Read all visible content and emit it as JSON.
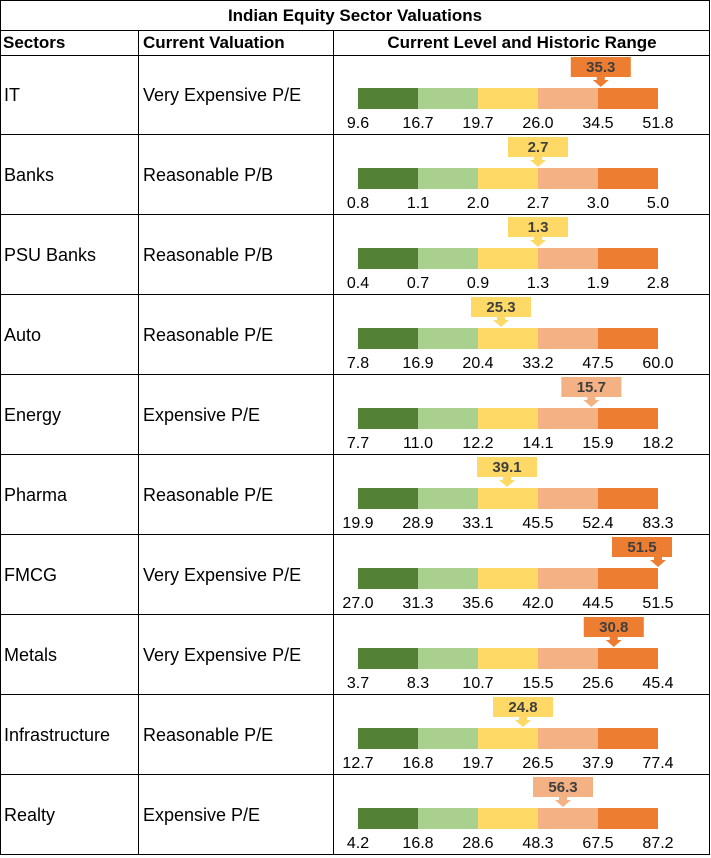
{
  "title": "Indian Equity Sector Valuations",
  "headers": {
    "sector": "Sectors",
    "valuation": "Current Valuation",
    "range": "Current Level and Historic Range"
  },
  "colors": [
    "#538135",
    "#a9d08e",
    "#ffd966",
    "#f4b183",
    "#ed7d31"
  ],
  "chart_data": {
    "type": "table",
    "rows": [
      {
        "sector": "IT",
        "valuation": "Very Expensive P/E",
        "current": "35.3",
        "ticks": [
          "9.6",
          "16.7",
          "19.7",
          "26.0",
          "34.5",
          "51.8"
        ],
        "zone": 4
      },
      {
        "sector": "Banks",
        "valuation": "Reasonable P/B",
        "current": "2.7",
        "ticks": [
          "0.8",
          "1.1",
          "2.0",
          "2.7",
          "3.0",
          "5.0"
        ],
        "zone": 2
      },
      {
        "sector": "PSU Banks",
        "valuation": "Reasonable P/B",
        "current": "1.3",
        "ticks": [
          "0.4",
          "0.7",
          "0.9",
          "1.3",
          "1.9",
          "2.8"
        ],
        "zone": 2
      },
      {
        "sector": "Auto",
        "valuation": "Reasonable P/E",
        "current": "25.3",
        "ticks": [
          "7.8",
          "16.9",
          "20.4",
          "33.2",
          "47.5",
          "60.0"
        ],
        "zone": 2
      },
      {
        "sector": "Energy",
        "valuation": "Expensive P/E",
        "current": "15.7",
        "ticks": [
          "7.7",
          "11.0",
          "12.2",
          "14.1",
          "15.9",
          "18.2"
        ],
        "zone": 3
      },
      {
        "sector": "Pharma",
        "valuation": "Reasonable P/E",
        "current": "39.1",
        "ticks": [
          "19.9",
          "28.9",
          "33.1",
          "45.5",
          "52.4",
          "83.3"
        ],
        "zone": 2
      },
      {
        "sector": "FMCG",
        "valuation": "Very Expensive P/E",
        "current": "51.5",
        "ticks": [
          "27.0",
          "31.3",
          "35.6",
          "42.0",
          "44.5",
          "51.5"
        ],
        "zone": 4
      },
      {
        "sector": "Metals",
        "valuation": "Very Expensive P/E",
        "current": "30.8",
        "ticks": [
          "3.7",
          "8.3",
          "10.7",
          "15.5",
          "25.6",
          "45.4"
        ],
        "zone": 4
      },
      {
        "sector": "Infrastructure",
        "valuation": "Reasonable P/E",
        "current": "24.8",
        "ticks": [
          "12.7",
          "16.8",
          "19.7",
          "26.5",
          "37.9",
          "77.4"
        ],
        "zone": 2
      },
      {
        "sector": "Realty",
        "valuation": "Expensive P/E",
        "current": "56.3",
        "ticks": [
          "4.2",
          "16.8",
          "28.6",
          "48.3",
          "67.5",
          "87.2"
        ],
        "zone": 3
      }
    ]
  }
}
